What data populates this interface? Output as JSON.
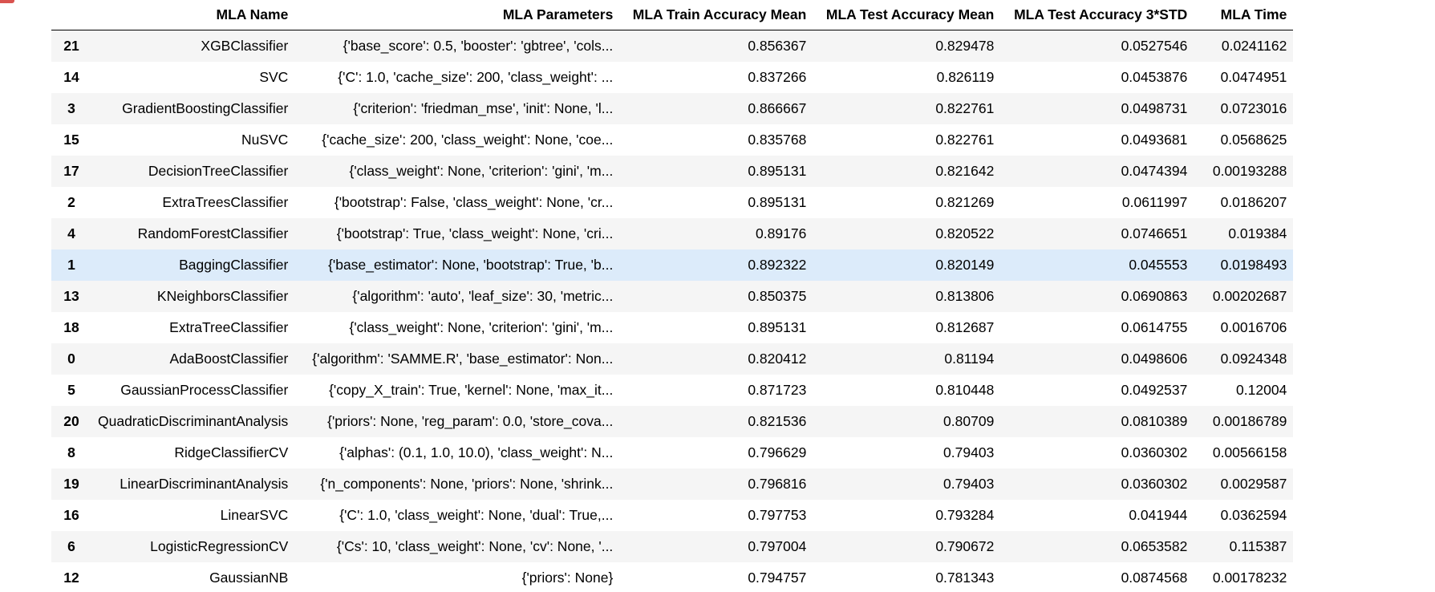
{
  "table": {
    "columns": [
      "",
      "MLA Name",
      "MLA Parameters",
      "MLA Train Accuracy Mean",
      "MLA Test Accuracy Mean",
      "MLA Test Accuracy 3*STD",
      "MLA Time"
    ],
    "rows": [
      [
        "21",
        "XGBClassifier",
        "{'base_score': 0.5, 'booster': 'gbtree', 'cols...",
        "0.856367",
        "0.829478",
        "0.0527546",
        "0.0241162"
      ],
      [
        "14",
        "SVC",
        "{'C': 1.0, 'cache_size': 200, 'class_weight': ...",
        "0.837266",
        "0.826119",
        "0.0453876",
        "0.0474951"
      ],
      [
        "3",
        "GradientBoostingClassifier",
        "{'criterion': 'friedman_mse', 'init': None, 'l...",
        "0.866667",
        "0.822761",
        "0.0498731",
        "0.0723016"
      ],
      [
        "15",
        "NuSVC",
        "{'cache_size': 200, 'class_weight': None, 'coe...",
        "0.835768",
        "0.822761",
        "0.0493681",
        "0.0568625"
      ],
      [
        "17",
        "DecisionTreeClassifier",
        "{'class_weight': None, 'criterion': 'gini', 'm...",
        "0.895131",
        "0.821642",
        "0.0474394",
        "0.00193288"
      ],
      [
        "2",
        "ExtraTreesClassifier",
        "{'bootstrap': False, 'class_weight': None, 'cr...",
        "0.895131",
        "0.821269",
        "0.0611997",
        "0.0186207"
      ],
      [
        "4",
        "RandomForestClassifier",
        "{'bootstrap': True, 'class_weight': None, 'cri...",
        "0.89176",
        "0.820522",
        "0.0746651",
        "0.019384"
      ],
      [
        "1",
        "BaggingClassifier",
        "{'base_estimator': None, 'bootstrap': True, 'b...",
        "0.892322",
        "0.820149",
        "0.045553",
        "0.0198493"
      ],
      [
        "13",
        "KNeighborsClassifier",
        "{'algorithm': 'auto', 'leaf_size': 30, 'metric...",
        "0.850375",
        "0.813806",
        "0.0690863",
        "0.00202687"
      ],
      [
        "18",
        "ExtraTreeClassifier",
        "{'class_weight': None, 'criterion': 'gini', 'm...",
        "0.895131",
        "0.812687",
        "0.0614755",
        "0.0016706"
      ],
      [
        "0",
        "AdaBoostClassifier",
        "{'algorithm': 'SAMME.R', 'base_estimator': Non...",
        "0.820412",
        "0.81194",
        "0.0498606",
        "0.0924348"
      ],
      [
        "5",
        "GaussianProcessClassifier",
        "{'copy_X_train': True, 'kernel': None, 'max_it...",
        "0.871723",
        "0.810448",
        "0.0492537",
        "0.12004"
      ],
      [
        "20",
        "QuadraticDiscriminantAnalysis",
        "{'priors': None, 'reg_param': 0.0, 'store_cova...",
        "0.821536",
        "0.80709",
        "0.0810389",
        "0.00186789"
      ],
      [
        "8",
        "RidgeClassifierCV",
        "{'alphas': (0.1, 1.0, 10.0), 'class_weight': N...",
        "0.796629",
        "0.79403",
        "0.0360302",
        "0.00566158"
      ],
      [
        "19",
        "LinearDiscriminantAnalysis",
        "{'n_components': None, 'priors': None, 'shrink...",
        "0.796816",
        "0.79403",
        "0.0360302",
        "0.0029587"
      ],
      [
        "16",
        "LinearSVC",
        "{'C': 1.0, 'class_weight': None, 'dual': True,...",
        "0.797753",
        "0.793284",
        "0.041944",
        "0.0362594"
      ],
      [
        "6",
        "LogisticRegressionCV",
        "{'Cs': 10, 'class_weight': None, 'cv': None, '...",
        "0.797004",
        "0.790672",
        "0.0653582",
        "0.115387"
      ],
      [
        "12",
        "GaussianNB",
        "{'priors': None}",
        "0.794757",
        "0.781343",
        "0.0874568",
        "0.00178232"
      ]
    ],
    "hovered_row_index": 7
  },
  "colors": {
    "stripe": "#f5f5f5",
    "hover": "#dcebfa",
    "header_rule": "#000000",
    "corner_mark": "#d9534f"
  }
}
